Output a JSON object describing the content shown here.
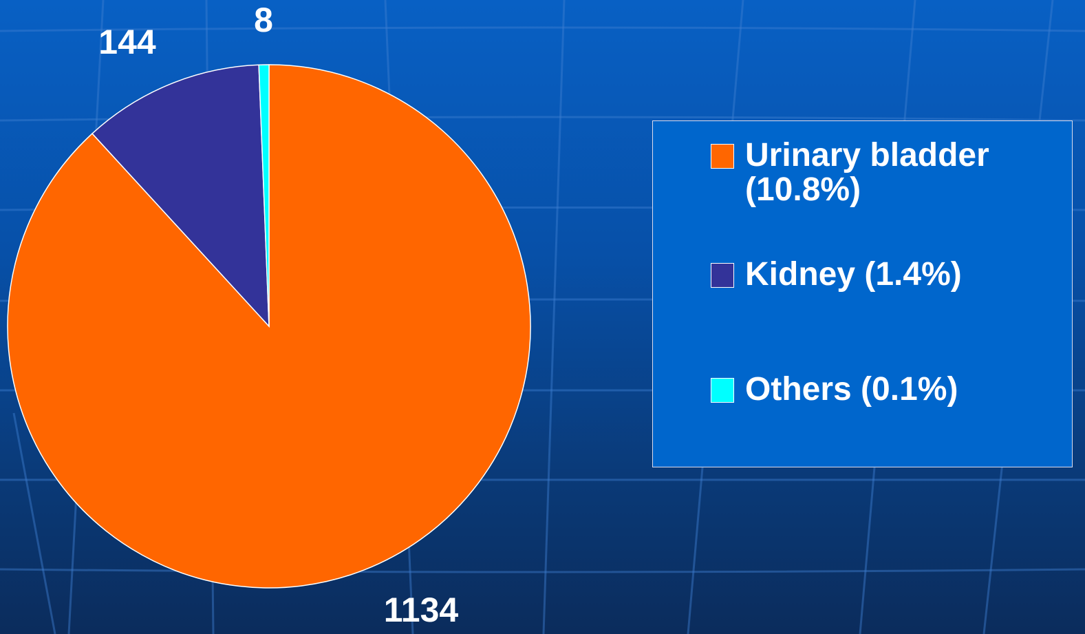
{
  "chart_data": {
    "type": "pie",
    "categories": [
      "Urinary bladder (10.8%)",
      "Kidney (1.4%)",
      "Others (0.1%)"
    ],
    "values": [
      1134,
      144,
      8
    ],
    "colors": [
      "#ff6600",
      "#333399",
      "#00ffff"
    ],
    "legend": "right"
  }
}
